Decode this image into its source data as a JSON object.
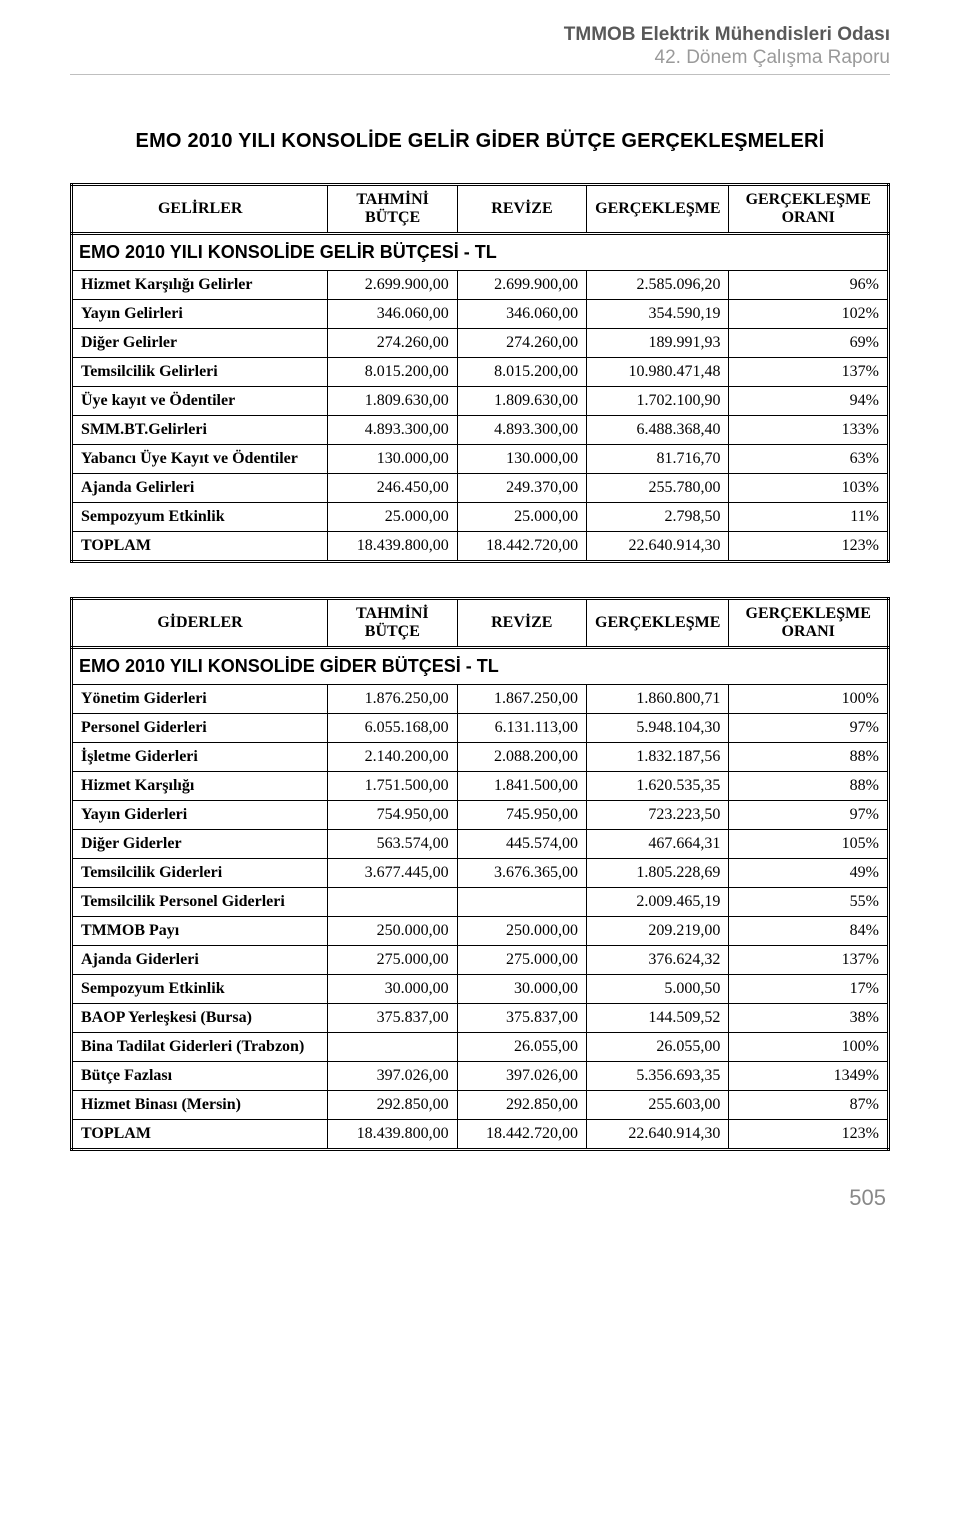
{
  "header": {
    "line1": "TMMOB Elektrik Mühendisleri Odası",
    "line2": "42. Dönem Çalışma Raporu"
  },
  "mainTitle": "EMO 2010 YILI KONSOLİDE GELİR GİDER BÜTÇE GERÇEKLEŞMELERİ",
  "table1": {
    "sectionTitle": "EMO 2010 YILI KONSOLİDE GELİR BÜTÇESİ - TL",
    "columns": [
      "GELİRLER",
      "TAHMİNİ BÜTÇE",
      "REVİZE",
      "GERÇEKLEŞME",
      "GERÇEKLEŞME ORANI"
    ],
    "rows": [
      [
        "Hizmet Karşılığı Gelirler",
        "2.699.900,00",
        "2.699.900,00",
        "2.585.096,20",
        "96%"
      ],
      [
        "Yayın Gelirleri",
        "346.060,00",
        "346.060,00",
        "354.590,19",
        "102%"
      ],
      [
        "Diğer Gelirler",
        "274.260,00",
        "274.260,00",
        "189.991,93",
        "69%"
      ],
      [
        "Temsilcilik Gelirleri",
        "8.015.200,00",
        "8.015.200,00",
        "10.980.471,48",
        "137%"
      ],
      [
        "Üye kayıt ve Ödentiler",
        "1.809.630,00",
        "1.809.630,00",
        "1.702.100,90",
        "94%"
      ],
      [
        "SMM.BT.Gelirleri",
        "4.893.300,00",
        "4.893.300,00",
        "6.488.368,40",
        "133%"
      ],
      [
        "Yabancı Üye Kayıt ve Ödentiler",
        "130.000,00",
        "130.000,00",
        "81.716,70",
        "63%"
      ],
      [
        "Ajanda Gelirleri",
        "246.450,00",
        "249.370,00",
        "255.780,00",
        "103%"
      ],
      [
        "Sempozyum Etkinlik",
        "25.000,00",
        "25.000,00",
        "2.798,50",
        "11%"
      ],
      [
        "TOPLAM",
        "18.439.800,00",
        "18.442.720,00",
        "22.640.914,30",
        "123%"
      ]
    ]
  },
  "table2": {
    "sectionTitle": "EMO 2010 YILI KONSOLİDE GİDER BÜTÇESİ - TL",
    "columns": [
      "GİDERLER",
      "TAHMİNİ BÜTÇE",
      "REVİZE",
      "GERÇEKLEŞME",
      "GERÇEKLEŞME ORANI"
    ],
    "rows": [
      [
        "Yönetim Giderleri",
        "1.876.250,00",
        "1.867.250,00",
        "1.860.800,71",
        "100%"
      ],
      [
        "Personel Giderleri",
        "6.055.168,00",
        "6.131.113,00",
        "5.948.104,30",
        "97%"
      ],
      [
        "İşletme Giderleri",
        "2.140.200,00",
        "2.088.200,00",
        "1.832.187,56",
        "88%"
      ],
      [
        "Hizmet Karşılığı",
        "1.751.500,00",
        "1.841.500,00",
        "1.620.535,35",
        "88%"
      ],
      [
        "Yayın Giderleri",
        "754.950,00",
        "745.950,00",
        "723.223,50",
        "97%"
      ],
      [
        "Diğer Giderler",
        "563.574,00",
        "445.574,00",
        "467.664,31",
        "105%"
      ],
      [
        "Temsilcilik Giderleri",
        "3.677.445,00",
        "3.676.365,00",
        "1.805.228,69",
        "49%"
      ],
      [
        "Temsilcilik Personel Giderleri",
        "",
        "",
        "2.009.465,19",
        "55%"
      ],
      [
        "TMMOB Payı",
        "250.000,00",
        "250.000,00",
        "209.219,00",
        "84%"
      ],
      [
        "Ajanda Giderleri",
        "275.000,00",
        "275.000,00",
        "376.624,32",
        "137%"
      ],
      [
        "Sempozyum Etkinlik",
        "30.000,00",
        "30.000,00",
        "5.000,50",
        "17%"
      ],
      [
        "BAOP Yerleşkesi (Bursa)",
        "375.837,00",
        "375.837,00",
        "144.509,52",
        "38%"
      ],
      [
        "Bina Tadilat Giderleri (Trabzon)",
        "",
        "26.055,00",
        "26.055,00",
        "100%"
      ],
      [
        "Bütçe Fazlası",
        "397.026,00",
        "397.026,00",
        "5.356.693,35",
        "1349%"
      ],
      [
        "Hizmet Binası (Mersin)",
        "292.850,00",
        "292.850,00",
        "255.603,00",
        "87%"
      ],
      [
        "TOPLAM",
        "18.439.800,00",
        "18.442.720,00",
        "22.640.914,30",
        "123%"
      ]
    ]
  },
  "pageNumber": "505",
  "style": {
    "colWidths": [
      "260px",
      "130px",
      "130px",
      "130px",
      "160px"
    ],
    "fontBody": "Georgia, serif",
    "fontTitle": "Arial, Helvetica, sans-serif",
    "borderColor": "#000000",
    "headerGray": "#595959",
    "headerLight": "#9a9a9a",
    "pageNumColor": "#888888"
  }
}
